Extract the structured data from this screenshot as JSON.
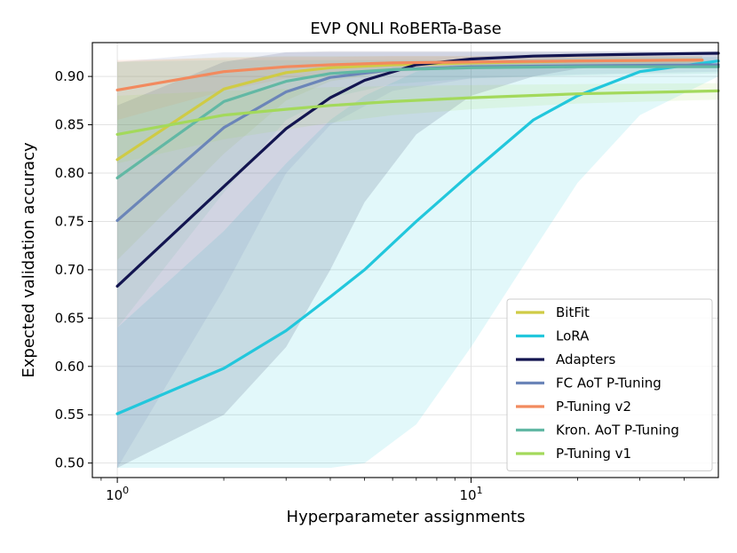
{
  "chart_data": {
    "type": "line",
    "title": "EVP QNLI RoBERTa-Base",
    "xlabel": "Hyperparameter assignments",
    "ylabel": "Expected validation accuracy",
    "xscale": "log",
    "xlim": [
      0.85,
      50
    ],
    "ylim": [
      0.485,
      0.935
    ],
    "x_ticks": [
      {
        "value": 1,
        "base": "10",
        "exp": "0"
      },
      {
        "value": 10,
        "base": "10",
        "exp": "1"
      }
    ],
    "y_ticks": [
      "0.50",
      "0.55",
      "0.60",
      "0.65",
      "0.70",
      "0.75",
      "0.80",
      "0.85",
      "0.90"
    ],
    "grid": true,
    "legend_position": "lower-right",
    "series": [
      {
        "name": "BitFit",
        "color": "#cfcb45",
        "x": [
          1,
          2,
          3,
          4,
          6,
          10,
          20,
          45
        ],
        "values": [
          0.814,
          0.887,
          0.904,
          0.909,
          0.912,
          0.914,
          0.916,
          0.917
        ],
        "lower": [
          0.71,
          0.82,
          0.875,
          0.895,
          0.905,
          0.908,
          0.91,
          0.912
        ],
        "upper": [
          0.915,
          0.92,
          0.921,
          0.921,
          0.921,
          0.921,
          0.921,
          0.921
        ]
      },
      {
        "name": "LoRA",
        "color": "#22c7dc",
        "x": [
          1,
          2,
          3,
          4,
          5,
          7,
          10,
          15,
          20,
          30,
          50
        ],
        "values": [
          0.551,
          0.598,
          0.637,
          0.672,
          0.7,
          0.75,
          0.8,
          0.855,
          0.88,
          0.905,
          0.916
        ],
        "lower": [
          0.495,
          0.495,
          0.495,
          0.495,
          0.5,
          0.54,
          0.62,
          0.72,
          0.79,
          0.86,
          0.9
        ],
        "upper": [
          0.64,
          0.74,
          0.81,
          0.855,
          0.88,
          0.905,
          0.915,
          0.918,
          0.919,
          0.92,
          0.92
        ]
      },
      {
        "name": "Adapters",
        "color": "#131550",
        "x": [
          1,
          2,
          3,
          4,
          5,
          7,
          10,
          15,
          20,
          30,
          50
        ],
        "values": [
          0.683,
          0.786,
          0.846,
          0.878,
          0.896,
          0.912,
          0.918,
          0.921,
          0.922,
          0.923,
          0.924
        ],
        "lower": [
          0.495,
          0.55,
          0.62,
          0.7,
          0.77,
          0.84,
          0.88,
          0.9,
          0.908,
          0.912,
          0.915
        ],
        "upper": [
          0.87,
          0.915,
          0.925,
          0.926,
          0.926,
          0.926,
          0.926,
          0.926,
          0.926,
          0.926,
          0.926
        ]
      },
      {
        "name": "FC AoT P-Tuning",
        "color": "#6b85b8",
        "x": [
          1,
          2,
          3,
          4,
          6,
          10,
          20,
          50
        ],
        "values": [
          0.751,
          0.847,
          0.884,
          0.899,
          0.907,
          0.91,
          0.911,
          0.912
        ],
        "lower": [
          0.495,
          0.68,
          0.8,
          0.85,
          0.885,
          0.898,
          0.902,
          0.905
        ],
        "upper": [
          0.915,
          0.925,
          0.925,
          0.925,
          0.925,
          0.925,
          0.925,
          0.925
        ]
      },
      {
        "name": "P-Tuning v2",
        "color": "#f28a5e",
        "x": [
          1,
          2,
          3,
          4,
          6,
          10,
          20,
          45
        ],
        "values": [
          0.886,
          0.905,
          0.91,
          0.912,
          0.914,
          0.915,
          0.916,
          0.917
        ],
        "lower": [
          0.855,
          0.885,
          0.898,
          0.903,
          0.906,
          0.908,
          0.91,
          0.911
        ],
        "upper": [
          0.917,
          0.919,
          0.92,
          0.92,
          0.921,
          0.921,
          0.921,
          0.921
        ]
      },
      {
        "name": "Kron. AoT P-Tuning",
        "color": "#62b8a4",
        "x": [
          1,
          2,
          3,
          4,
          6,
          10,
          20,
          50
        ],
        "values": [
          0.795,
          0.874,
          0.895,
          0.903,
          0.907,
          0.909,
          0.91,
          0.91
        ],
        "lower": [
          0.64,
          0.78,
          0.855,
          0.878,
          0.892,
          0.898,
          0.901,
          0.903
        ],
        "upper": [
          0.915,
          0.917,
          0.917,
          0.917,
          0.917,
          0.917,
          0.917,
          0.917
        ]
      },
      {
        "name": "P-Tuning v1",
        "color": "#a3d95b",
        "x": [
          1,
          2,
          3,
          4,
          6,
          10,
          20,
          50
        ],
        "values": [
          0.84,
          0.86,
          0.866,
          0.87,
          0.874,
          0.878,
          0.882,
          0.885
        ],
        "lower": [
          0.81,
          0.835,
          0.845,
          0.852,
          0.86,
          0.866,
          0.872,
          0.876
        ],
        "upper": [
          0.88,
          0.885,
          0.887,
          0.889,
          0.89,
          0.891,
          0.892,
          0.893
        ]
      }
    ]
  }
}
